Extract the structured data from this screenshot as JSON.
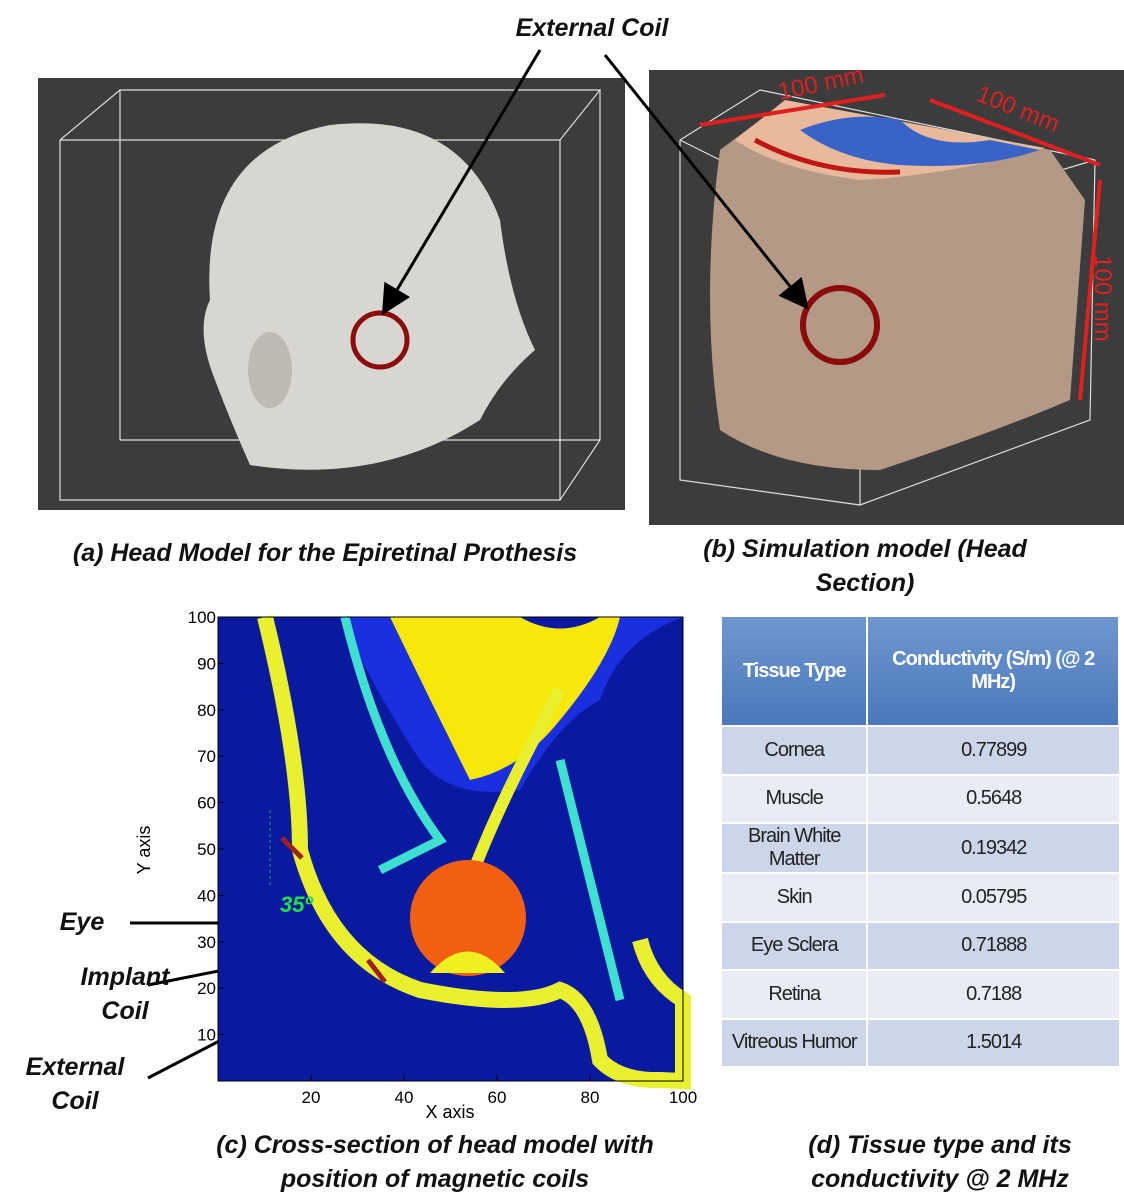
{
  "top_label": "External Coil",
  "panel_a": {
    "caption": "(a) Head Model for the Epiretinal Prothesis"
  },
  "panel_b": {
    "caption": "(b) Simulation model (Head Section)",
    "dimension_labels": [
      "100 mm",
      "100 mm",
      "100 mm"
    ]
  },
  "panel_c": {
    "caption": "(c) Cross-section of head model with position of magnetic coils",
    "x_axis_label": "X axis",
    "y_axis_label": "Y axis",
    "xlim": [
      0,
      100
    ],
    "ylim": [
      0,
      100
    ],
    "xticks": [
      20,
      40,
      60,
      80,
      100
    ],
    "yticks": [
      10,
      20,
      30,
      40,
      50,
      60,
      70,
      80,
      90,
      100
    ],
    "angle_label": "35º",
    "eye_label": "Eye",
    "implant_label": "Implant Coil",
    "external_label": "External Coil"
  },
  "panel_d": {
    "caption": "(d) Tissue type and its conductivity @  2 MHz",
    "table": {
      "header": [
        "Tissue Type",
        "Conductivity (S/m) (@ 2 MHz)"
      ],
      "rows": [
        [
          "Cornea",
          "0.77899"
        ],
        [
          "Muscle",
          "0.5648"
        ],
        [
          "Brain White Matter",
          "0.19342"
        ],
        [
          "Skin",
          "0.05795"
        ],
        [
          "Eye Sclera",
          "0.71888"
        ],
        [
          "Retina",
          "0.7188"
        ],
        [
          "Vitreous Humor",
          "1.5014"
        ]
      ]
    }
  }
}
